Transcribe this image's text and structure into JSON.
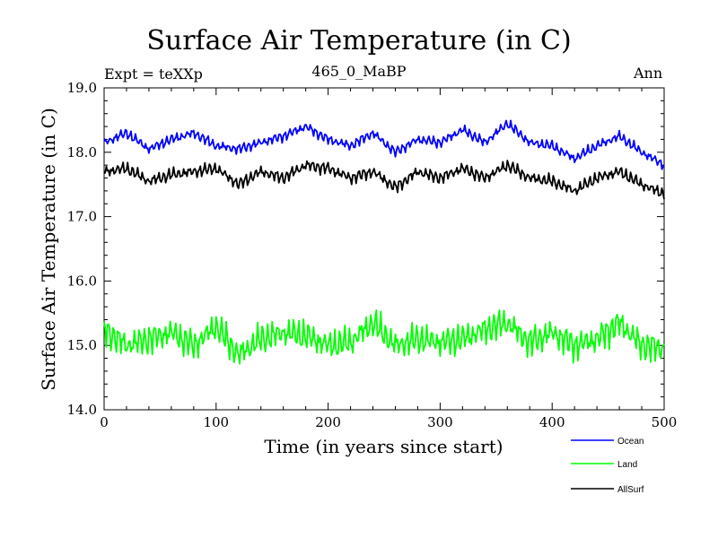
{
  "chart_data": {
    "type": "line",
    "title": "Surface Air Temperature (in C)",
    "subtitle": "465_0_MaBP",
    "experiment": "Expt = teXXp",
    "season": "Ann",
    "xlabel": "Time (in years since start)",
    "ylabel": "Surface Air Temperature (in C)",
    "xlim": [
      0,
      500
    ],
    "ylim": [
      14.0,
      19.0
    ],
    "xticks": [
      0,
      100,
      200,
      300,
      400,
      500
    ],
    "yticks": [
      "14.0",
      "15.0",
      "16.0",
      "17.0",
      "18.0",
      "19.0"
    ],
    "grid": false,
    "legend_position": "bottom-right",
    "series": [
      {
        "name": "Ocean",
        "color": "#0000ff",
        "x": [
          0,
          20,
          40,
          60,
          80,
          100,
          120,
          140,
          160,
          180,
          200,
          220,
          240,
          260,
          280,
          300,
          320,
          340,
          360,
          380,
          400,
          420,
          440,
          460,
          480,
          500
        ],
        "values": [
          18.15,
          18.3,
          18.05,
          18.2,
          18.3,
          18.1,
          18.05,
          18.15,
          18.25,
          18.4,
          18.2,
          18.1,
          18.3,
          18.0,
          18.2,
          18.15,
          18.35,
          18.15,
          18.45,
          18.15,
          18.1,
          17.9,
          18.1,
          18.25,
          18.0,
          17.8
        ]
      },
      {
        "name": "Land",
        "color": "#00ff00",
        "x": [
          0,
          20,
          40,
          60,
          80,
          100,
          120,
          140,
          160,
          180,
          200,
          220,
          240,
          260,
          280,
          300,
          320,
          340,
          360,
          380,
          400,
          420,
          440,
          460,
          480,
          500
        ],
        "values": [
          15.25,
          15.0,
          15.1,
          15.2,
          15.0,
          15.3,
          14.85,
          15.1,
          15.2,
          15.15,
          15.0,
          15.05,
          15.35,
          15.0,
          15.1,
          15.05,
          15.1,
          15.25,
          15.35,
          15.05,
          15.2,
          15.0,
          15.1,
          15.35,
          15.0,
          14.95
        ]
      },
      {
        "name": "AllSurf",
        "color": "#000000",
        "x": [
          0,
          20,
          40,
          60,
          80,
          100,
          120,
          140,
          160,
          180,
          200,
          220,
          240,
          260,
          280,
          300,
          320,
          340,
          360,
          380,
          400,
          420,
          440,
          460,
          480,
          500
        ],
        "values": [
          17.7,
          17.75,
          17.55,
          17.65,
          17.7,
          17.75,
          17.5,
          17.7,
          17.6,
          17.8,
          17.75,
          17.6,
          17.7,
          17.45,
          17.7,
          17.6,
          17.75,
          17.6,
          17.8,
          17.6,
          17.55,
          17.4,
          17.6,
          17.7,
          17.5,
          17.35
        ]
      }
    ]
  }
}
